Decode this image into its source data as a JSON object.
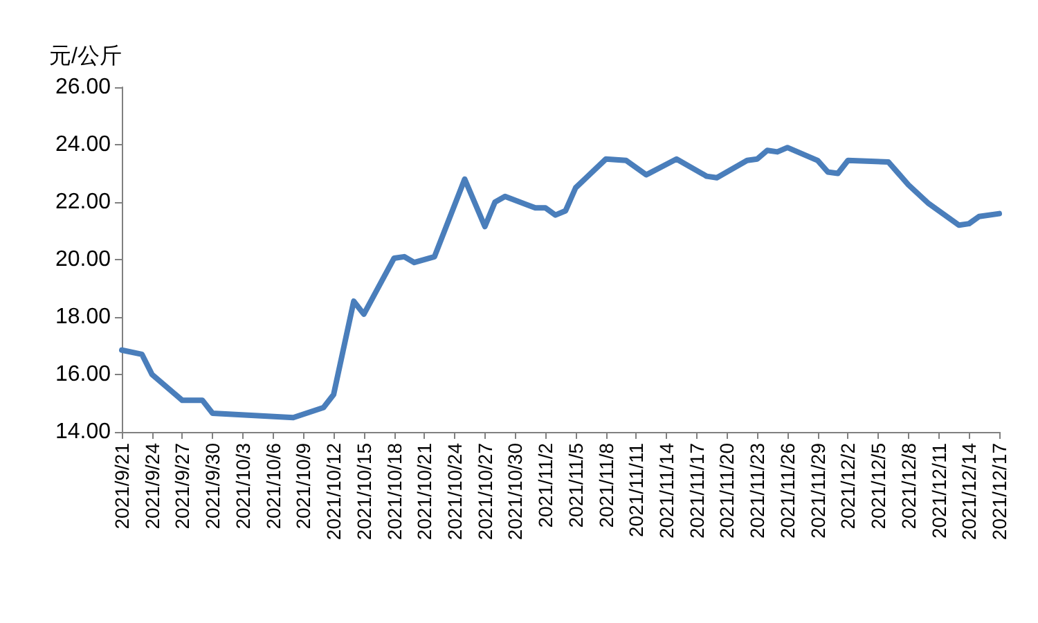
{
  "chart_data": {
    "type": "line",
    "ylabel": "元/公斤",
    "x": [
      "2021-09-21",
      "2021-09-23",
      "2021-09-24",
      "2021-09-27",
      "2021-09-29",
      "2021-09-30",
      "2021-10-08",
      "2021-10-11",
      "2021-10-12",
      "2021-10-14",
      "2021-10-15",
      "2021-10-18",
      "2021-10-19",
      "2021-10-20",
      "2021-10-22",
      "2021-10-25",
      "2021-10-27",
      "2021-10-28",
      "2021-10-29",
      "2021-11-01",
      "2021-11-02",
      "2021-11-03",
      "2021-11-04",
      "2021-11-05",
      "2021-11-08",
      "2021-11-10",
      "2021-11-12",
      "2021-11-15",
      "2021-11-18",
      "2021-11-19",
      "2021-11-22",
      "2021-11-23",
      "2021-11-24",
      "2021-11-25",
      "2021-11-26",
      "2021-11-29",
      "2021-11-30",
      "2021-12-01",
      "2021-12-02",
      "2021-12-06",
      "2021-12-07",
      "2021-12-08",
      "2021-12-10",
      "2021-12-13",
      "2021-12-14",
      "2021-12-15",
      "2021-12-17"
    ],
    "series": [
      {
        "color": "#4a7ebb",
        "values": [
          16.85,
          16.7,
          16.0,
          15.1,
          15.1,
          14.65,
          14.5,
          14.85,
          15.3,
          18.55,
          18.1,
          20.05,
          20.1,
          19.9,
          20.1,
          22.8,
          21.15,
          22.0,
          22.2,
          21.8,
          21.8,
          21.55,
          21.7,
          22.5,
          23.5,
          23.45,
          22.95,
          23.5,
          22.9,
          22.85,
          23.45,
          23.5,
          23.8,
          23.75,
          23.9,
          23.45,
          23.05,
          23.0,
          23.45,
          23.4,
          23.0,
          22.6,
          21.95,
          21.2,
          21.25,
          21.5,
          21.6
        ]
      }
    ],
    "xlim": [
      "2021-09-21",
      "2021-12-17"
    ],
    "xticks": [
      {
        "value": "2021-09-21",
        "label": "2021/9/21"
      },
      {
        "value": "2021-09-24",
        "label": "2021/9/24"
      },
      {
        "value": "2021-09-27",
        "label": "2021/9/27"
      },
      {
        "value": "2021-09-30",
        "label": "2021/9/30"
      },
      {
        "value": "2021-10-03",
        "label": "2021/10/3"
      },
      {
        "value": "2021-10-06",
        "label": "2021/10/6"
      },
      {
        "value": "2021-10-09",
        "label": "2021/10/9"
      },
      {
        "value": "2021-10-12",
        "label": "2021/10/12"
      },
      {
        "value": "2021-10-15",
        "label": "2021/10/15"
      },
      {
        "value": "2021-10-18",
        "label": "2021/10/18"
      },
      {
        "value": "2021-10-21",
        "label": "2021/10/21"
      },
      {
        "value": "2021-10-24",
        "label": "2021/10/24"
      },
      {
        "value": "2021-10-27",
        "label": "2021/10/27"
      },
      {
        "value": "2021-10-30",
        "label": "2021/10/30"
      },
      {
        "value": "2021-11-02",
        "label": "2021/11/2"
      },
      {
        "value": "2021-11-05",
        "label": "2021/11/5"
      },
      {
        "value": "2021-11-08",
        "label": "2021/11/8"
      },
      {
        "value": "2021-11-11",
        "label": "2021/11/11"
      },
      {
        "value": "2021-11-14",
        "label": "2021/11/14"
      },
      {
        "value": "2021-11-17",
        "label": "2021/11/17"
      },
      {
        "value": "2021-11-20",
        "label": "2021/11/20"
      },
      {
        "value": "2021-11-23",
        "label": "2021/11/23"
      },
      {
        "value": "2021-11-26",
        "label": "2021/11/26"
      },
      {
        "value": "2021-11-29",
        "label": "2021/11/29"
      },
      {
        "value": "2021-12-02",
        "label": "2021/12/2"
      },
      {
        "value": "2021-12-05",
        "label": "2021/12/5"
      },
      {
        "value": "2021-12-08",
        "label": "2021/12/8"
      },
      {
        "value": "2021-12-11",
        "label": "2021/12/11"
      },
      {
        "value": "2021-12-14",
        "label": "2021/12/14"
      },
      {
        "value": "2021-12-17",
        "label": "2021/12/17"
      }
    ],
    "ylim": [
      14,
      26
    ],
    "yticks": [
      {
        "value": 14,
        "label": "14.00"
      },
      {
        "value": 16,
        "label": "16.00"
      },
      {
        "value": 18,
        "label": "18.00"
      },
      {
        "value": 20,
        "label": "20.00"
      },
      {
        "value": 22,
        "label": "22.00"
      },
      {
        "value": 24,
        "label": "24.00"
      },
      {
        "value": 26,
        "label": "26.00"
      }
    ],
    "grid": false,
    "marker": "none",
    "line_style": "solid"
  }
}
